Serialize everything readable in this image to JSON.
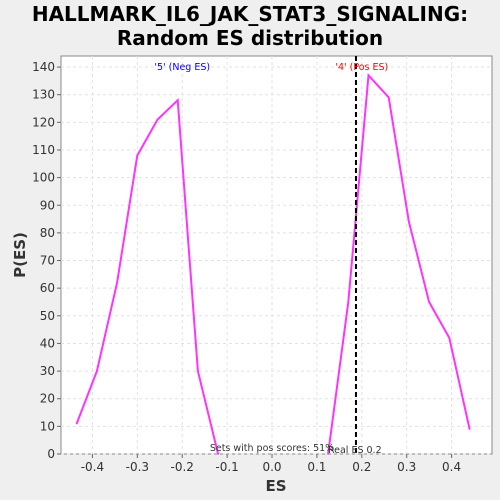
{
  "chart_data": {
    "type": "line",
    "title": [
      "HALLMARK_IL6_JAK_STAT3_SIGNALING:",
      "Random ES distribution"
    ],
    "xlabel": "ES",
    "ylabel": "P(ES)",
    "xlim": [
      -0.47,
      0.49
    ],
    "ylim": [
      0,
      144
    ],
    "x_ticks": [
      "-0.4",
      "-0.3",
      "-0.2",
      "-0.1",
      "0.0",
      "0.1",
      "0.2",
      "0.3",
      "0.4"
    ],
    "x_tick_values": [
      -0.4,
      -0.3,
      -0.2,
      -0.1,
      0.0,
      0.1,
      0.2,
      0.3,
      0.4
    ],
    "y_ticks": [
      0,
      10,
      20,
      30,
      40,
      50,
      60,
      70,
      80,
      90,
      100,
      110,
      120,
      130,
      140
    ],
    "grid": true,
    "series": [
      {
        "color": "#ff33ff",
        "segments": [
          [
            {
              "x": -0.435,
              "y": 11
            },
            {
              "x": -0.39,
              "y": 30
            },
            {
              "x": -0.345,
              "y": 62
            },
            {
              "x": -0.3,
              "y": 108
            },
            {
              "x": -0.255,
              "y": 121
            },
            {
              "x": -0.21,
              "y": 128
            },
            {
              "x": -0.165,
              "y": 30
            },
            {
              "x": -0.12,
              "y": 0
            }
          ],
          [
            {
              "x": 0.125,
              "y": 0
            },
            {
              "x": 0.17,
              "y": 55
            },
            {
              "x": 0.215,
              "y": 137
            },
            {
              "x": 0.26,
              "y": 129
            },
            {
              "x": 0.305,
              "y": 84
            },
            {
              "x": 0.35,
              "y": 55
            },
            {
              "x": 0.395,
              "y": 42
            },
            {
              "x": 0.44,
              "y": 9
            }
          ]
        ]
      }
    ],
    "real_es": {
      "x": 0.187,
      "label": "Real ES 0.2",
      "color": "#000000"
    },
    "annotations": {
      "neg_es": {
        "text": "'5' (Neg ES)",
        "x": -0.2,
        "color": "#0000ff"
      },
      "pos_es": {
        "text": "'4' (Pos ES)",
        "x": 0.2,
        "color": "#ff0000"
      },
      "pos_scores": {
        "text": "Sets with pos scores: 51%",
        "x": 0.0
      }
    }
  }
}
